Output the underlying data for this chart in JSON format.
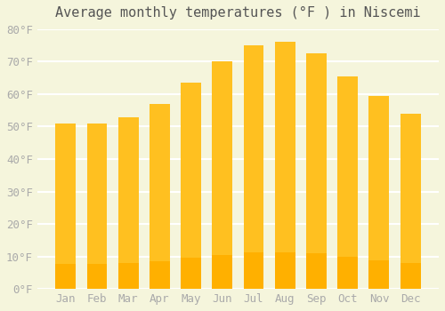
{
  "title": "Average monthly temperatures (°F ) in Niscemi",
  "months": [
    "Jan",
    "Feb",
    "Mar",
    "Apr",
    "May",
    "Jun",
    "Jul",
    "Aug",
    "Sep",
    "Oct",
    "Nov",
    "Dec"
  ],
  "values": [
    51,
    51,
    53,
    57,
    63.5,
    70,
    75,
    76,
    72.5,
    65.5,
    59.5,
    54
  ],
  "bar_color_top": "#FFC020",
  "bar_color_bottom": "#FFB000",
  "background_color": "#F5F5DC",
  "grid_color": "#FFFFFF",
  "ylim": [
    0,
    80
  ],
  "yticks": [
    0,
    10,
    20,
    30,
    40,
    50,
    60,
    70,
    80
  ],
  "title_fontsize": 11,
  "tick_fontsize": 9,
  "text_color": "#AAAAAA"
}
